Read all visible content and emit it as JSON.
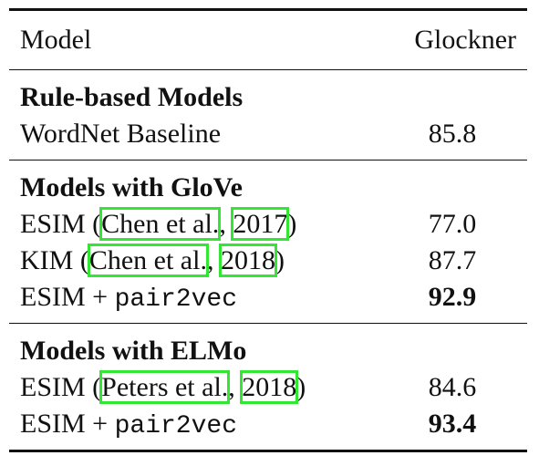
{
  "header": {
    "model": "Model",
    "score": "Glockner"
  },
  "groups": [
    {
      "title": "Rule-based Models",
      "rows": [
        {
          "parts": [
            {
              "text": "WordNet Baseline"
            }
          ],
          "value": "85.8",
          "bold": false
        }
      ]
    },
    {
      "title": "Models with GloVe",
      "rows": [
        {
          "parts": [
            {
              "text": "ESIM ("
            },
            {
              "text": "Chen et al.",
              "link": true
            },
            {
              "text": ", "
            },
            {
              "text": "2017",
              "link": true
            },
            {
              "text": ")"
            }
          ],
          "value": "77.0",
          "bold": false
        },
        {
          "parts": [
            {
              "text": "KIM ("
            },
            {
              "text": "Chen et al.",
              "link": true
            },
            {
              "text": ", "
            },
            {
              "text": "2018",
              "link": true
            },
            {
              "text": ")"
            }
          ],
          "value": "87.7",
          "bold": false
        },
        {
          "parts": [
            {
              "text": "ESIM + "
            },
            {
              "text": "pair2vec",
              "mono": true
            }
          ],
          "value": "92.9",
          "bold": true
        }
      ]
    },
    {
      "title": "Models with ELMo",
      "rows": [
        {
          "parts": [
            {
              "text": "ESIM ("
            },
            {
              "text": "Peters et al.",
              "link": true
            },
            {
              "text": ", "
            },
            {
              "text": "2018",
              "link": true
            },
            {
              "text": ")"
            }
          ],
          "value": "84.6",
          "bold": false
        },
        {
          "parts": [
            {
              "text": "ESIM + "
            },
            {
              "text": "pair2vec",
              "mono": true
            }
          ],
          "value": "93.4",
          "bold": true
        }
      ]
    }
  ]
}
